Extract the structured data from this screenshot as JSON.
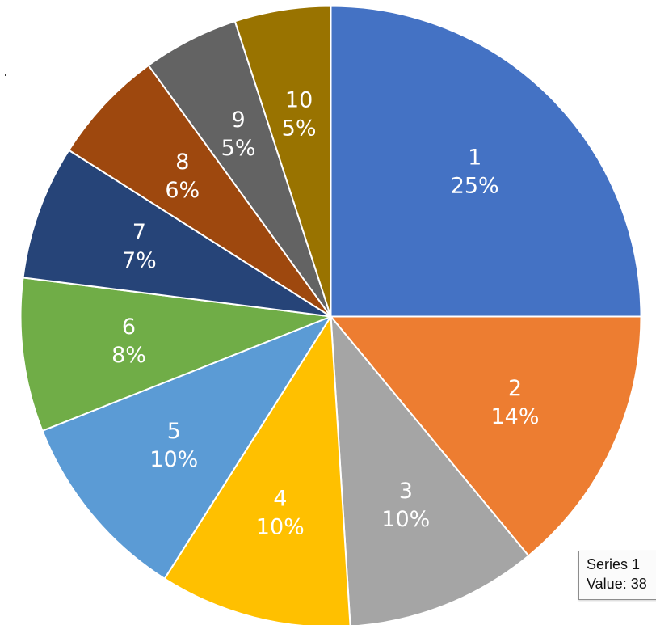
{
  "chart_data": {
    "type": "pie",
    "start_angle_deg": 0,
    "direction": "clockwise",
    "slices": [
      {
        "label": "1",
        "percent_label": "25%",
        "value": 25,
        "color": "#4472C4"
      },
      {
        "label": "2",
        "percent_label": "14%",
        "value": 14,
        "color": "#ED7D31"
      },
      {
        "label": "3",
        "percent_label": "10%",
        "value": 10,
        "color": "#A5A5A5"
      },
      {
        "label": "4",
        "percent_label": "10%",
        "value": 10,
        "color": "#FFC000"
      },
      {
        "label": "5",
        "percent_label": "10%",
        "value": 10,
        "color": "#5B9BD5"
      },
      {
        "label": "6",
        "percent_label": "8%",
        "value": 8,
        "color": "#70AD47"
      },
      {
        "label": "7",
        "percent_label": "7%",
        "value": 7,
        "color": "#264478"
      },
      {
        "label": "8",
        "percent_label": "6%",
        "value": 6,
        "color": "#9E480E"
      },
      {
        "label": "9",
        "percent_label": "5%",
        "value": 5,
        "color": "#636363"
      },
      {
        "label": "10",
        "percent_label": "5%",
        "value": 5,
        "color": "#997300"
      }
    ]
  },
  "tooltip": {
    "series": "Series 1",
    "value_text": "Value: 38"
  }
}
